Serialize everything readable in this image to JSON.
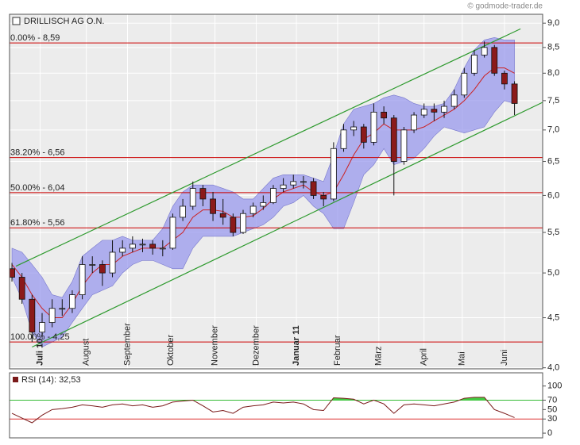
{
  "chart_data": [
    {
      "type": "candlestick",
      "title": "DRILLISCH AG O.N.",
      "source": "© godmode-trader.de",
      "x": [
        0,
        1,
        2,
        3,
        4,
        5,
        6,
        7,
        8,
        9,
        10,
        11,
        12,
        13,
        14,
        15,
        16,
        17,
        18,
        19,
        20,
        21,
        22,
        23,
        24,
        25,
        26,
        27,
        28,
        29,
        30,
        31,
        32,
        33,
        34,
        35,
        36,
        37,
        38,
        39,
        40,
        41,
        42,
        43,
        44,
        45,
        46,
        47,
        48,
        49,
        50
      ],
      "open": [
        5.05,
        4.95,
        4.7,
        4.35,
        4.45,
        4.6,
        4.6,
        4.75,
        5.1,
        5.1,
        5.0,
        5.25,
        5.3,
        5.35,
        5.35,
        5.3,
        5.3,
        5.7,
        5.85,
        6.1,
        5.95,
        5.75,
        5.7,
        5.5,
        5.75,
        5.85,
        5.9,
        6.1,
        6.15,
        6.2,
        6.2,
        6.0,
        5.95,
        6.7,
        7.0,
        7.05,
        6.8,
        7.3,
        7.2,
        6.5,
        7.0,
        7.25,
        7.35,
        7.3,
        7.4,
        7.6,
        8.0,
        8.35,
        8.5,
        8.0,
        7.8
      ],
      "high": [
        5.12,
        5.0,
        4.75,
        4.55,
        4.7,
        4.7,
        4.8,
        5.2,
        5.2,
        5.15,
        5.4,
        5.4,
        5.45,
        5.42,
        5.4,
        5.4,
        5.75,
        5.95,
        6.2,
        6.15,
        6.05,
        5.95,
        5.75,
        5.8,
        5.9,
        6.0,
        6.15,
        6.25,
        6.3,
        6.28,
        6.25,
        6.05,
        6.8,
        7.1,
        7.15,
        7.1,
        7.45,
        7.4,
        7.25,
        7.05,
        7.3,
        7.45,
        7.45,
        7.5,
        7.7,
        8.1,
        8.45,
        8.62,
        8.55,
        8.05,
        7.85
      ],
      "low": [
        4.9,
        4.65,
        4.25,
        4.3,
        4.4,
        4.52,
        4.55,
        4.7,
        5.0,
        4.85,
        4.95,
        5.2,
        5.25,
        5.25,
        5.22,
        5.2,
        5.28,
        5.65,
        5.8,
        5.85,
        5.65,
        5.6,
        5.45,
        5.48,
        5.7,
        5.8,
        5.88,
        6.05,
        6.1,
        6.1,
        5.95,
        5.85,
        5.92,
        6.65,
        6.9,
        6.7,
        6.75,
        7.1,
        6.0,
        6.45,
        6.95,
        7.2,
        7.15,
        7.2,
        7.35,
        7.55,
        7.95,
        8.3,
        7.95,
        7.7,
        7.25
      ],
      "close": [
        4.95,
        4.7,
        4.35,
        4.45,
        4.6,
        4.6,
        4.75,
        5.1,
        5.1,
        5.0,
        5.25,
        5.3,
        5.35,
        5.35,
        5.3,
        5.3,
        5.7,
        5.85,
        6.1,
        5.95,
        5.75,
        5.7,
        5.5,
        5.75,
        5.85,
        5.9,
        6.1,
        6.15,
        6.2,
        6.2,
        6.0,
        5.95,
        6.7,
        7.0,
        7.05,
        6.8,
        7.3,
        7.2,
        6.5,
        7.0,
        7.25,
        7.35,
        7.3,
        7.4,
        7.6,
        8.0,
        8.35,
        8.5,
        8.0,
        7.8,
        7.45
      ],
      "up_color": "#ffffff",
      "down_color": "#8b1a1a",
      "bands": {
        "upper": [
          5.3,
          5.25,
          5.1,
          4.95,
          4.75,
          4.72,
          4.9,
          5.2,
          5.3,
          5.4,
          5.4,
          5.45,
          5.4,
          5.4,
          5.4,
          5.55,
          5.85,
          6.05,
          6.15,
          6.15,
          6.15,
          6.1,
          6.05,
          5.95,
          5.95,
          6.1,
          6.25,
          6.3,
          6.3,
          6.3,
          6.25,
          6.2,
          6.6,
          7.1,
          7.35,
          7.4,
          7.45,
          7.55,
          7.6,
          7.55,
          7.45,
          7.4,
          7.4,
          7.45,
          7.7,
          8.1,
          8.45,
          8.65,
          8.7,
          8.65,
          8.65
        ],
        "middle": [
          5.1,
          4.95,
          4.75,
          4.6,
          4.5,
          4.5,
          4.65,
          4.85,
          5.0,
          5.1,
          5.1,
          5.2,
          5.25,
          5.3,
          5.3,
          5.3,
          5.4,
          5.5,
          5.7,
          5.8,
          5.8,
          5.78,
          5.7,
          5.7,
          5.72,
          5.82,
          5.95,
          6.05,
          6.1,
          6.15,
          6.05,
          6.0,
          6.05,
          6.3,
          6.6,
          6.85,
          6.95,
          7.1,
          7.0,
          7.0,
          7.0,
          7.05,
          7.15,
          7.25,
          7.35,
          7.5,
          7.7,
          7.95,
          8.1,
          8.1,
          8.0
        ],
        "lower": [
          4.95,
          4.7,
          4.35,
          4.2,
          4.25,
          4.3,
          4.45,
          4.6,
          4.75,
          4.8,
          4.85,
          5.0,
          5.1,
          5.15,
          5.15,
          5.1,
          5.05,
          5.05,
          5.3,
          5.45,
          5.45,
          5.45,
          5.45,
          5.5,
          5.55,
          5.6,
          5.7,
          5.85,
          5.9,
          6.0,
          5.85,
          5.75,
          5.55,
          5.55,
          5.9,
          6.3,
          6.45,
          6.7,
          6.45,
          6.5,
          6.55,
          6.7,
          6.9,
          7.05,
          7.0,
          6.95,
          7.0,
          7.05,
          7.3,
          7.5,
          7.45
        ],
        "fill": "#9999ee",
        "line_color": "#cc2222"
      },
      "levels": [
        {
          "value": 8.59,
          "label": "0.00% - 8,59"
        },
        {
          "value": 6.56,
          "label": "38.20% - 6,56"
        },
        {
          "value": 6.04,
          "label": "50.00% - 6,04"
        },
        {
          "value": 5.56,
          "label": "61.80% - 5,56"
        },
        {
          "value": 4.25,
          "label": "100.00% - 4,25"
        }
      ],
      "level_color": "#cc0000",
      "trendlines": [
        {
          "x": [
            0.4,
            50.6
          ],
          "y": [
            5.08,
            8.88
          ]
        },
        {
          "x": [
            2.0,
            52.8
          ],
          "y": [
            4.2,
            7.47
          ]
        }
      ],
      "trend_color": "#2e9a2e",
      "log_scale": true,
      "grid": true,
      "xlim": [
        -0.24,
        52.8
      ],
      "ylim": [
        3.99,
        9.19
      ],
      "xticks": [
        {
          "value": 2.8,
          "label": "Juli 10"
        },
        {
          "value": 7.4,
          "label": "August"
        },
        {
          "value": 11.5,
          "label": "September"
        },
        {
          "value": 15.8,
          "label": "Oktober"
        },
        {
          "value": 20.2,
          "label": "November"
        },
        {
          "value": 24.3,
          "label": "Dezember"
        },
        {
          "value": 28.3,
          "label": "Januar 11"
        },
        {
          "value": 32.4,
          "label": "Februar"
        },
        {
          "value": 36.5,
          "label": "März"
        },
        {
          "value": 41.0,
          "label": "April"
        },
        {
          "value": 44.8,
          "label": "Mai"
        },
        {
          "value": 49.0,
          "label": "Juni"
        }
      ],
      "yticks": [
        {
          "value": 4,
          "label": "4,0"
        },
        {
          "value": 4.5,
          "label": "4,5"
        },
        {
          "value": 5,
          "label": "5,0"
        },
        {
          "value": 5.5,
          "label": "5,5"
        },
        {
          "value": 6,
          "label": "6,0"
        },
        {
          "value": 6.5,
          "label": "6,5"
        },
        {
          "value": 7,
          "label": "7,0"
        },
        {
          "value": 7.5,
          "label": "7,5"
        },
        {
          "value": 8,
          "label": "8,0"
        },
        {
          "value": 8.5,
          "label": "8,5"
        },
        {
          "value": 9,
          "label": "9,0"
        }
      ]
    },
    {
      "type": "line",
      "x": [
        0,
        1,
        2,
        3,
        4,
        5,
        6,
        7,
        8,
        9,
        10,
        11,
        12,
        13,
        14,
        15,
        16,
        17,
        18,
        19,
        20,
        21,
        22,
        23,
        24,
        25,
        26,
        27,
        28,
        29,
        30,
        31,
        32,
        33,
        34,
        35,
        36,
        37,
        38,
        39,
        40,
        41,
        42,
        43,
        44,
        45,
        46,
        47,
        48,
        49,
        50
      ],
      "series": [
        {
          "name": "RSI (14): 32,53",
          "color": "#7a1a1a",
          "values": [
            42,
            32,
            22,
            38,
            50,
            52,
            55,
            60,
            58,
            55,
            60,
            62,
            58,
            60,
            55,
            58,
            66,
            68,
            70,
            58,
            45,
            48,
            42,
            55,
            58,
            60,
            66,
            64,
            66,
            62,
            50,
            48,
            75,
            74,
            72,
            62,
            70,
            62,
            42,
            60,
            62,
            60,
            58,
            62,
            66,
            74,
            76,
            76,
            50,
            42,
            33
          ]
        }
      ],
      "levels": [
        {
          "value": 70,
          "color": "#33bb33"
        },
        {
          "value": 30,
          "color": "#dd3333"
        }
      ],
      "fill_above": {
        "value": 70,
        "color": "#44cc44"
      },
      "xlim": [
        -0.24,
        52.8
      ],
      "ylim": [
        -10,
        128
      ],
      "yticks": [
        0,
        30,
        50,
        70,
        100
      ]
    }
  ]
}
